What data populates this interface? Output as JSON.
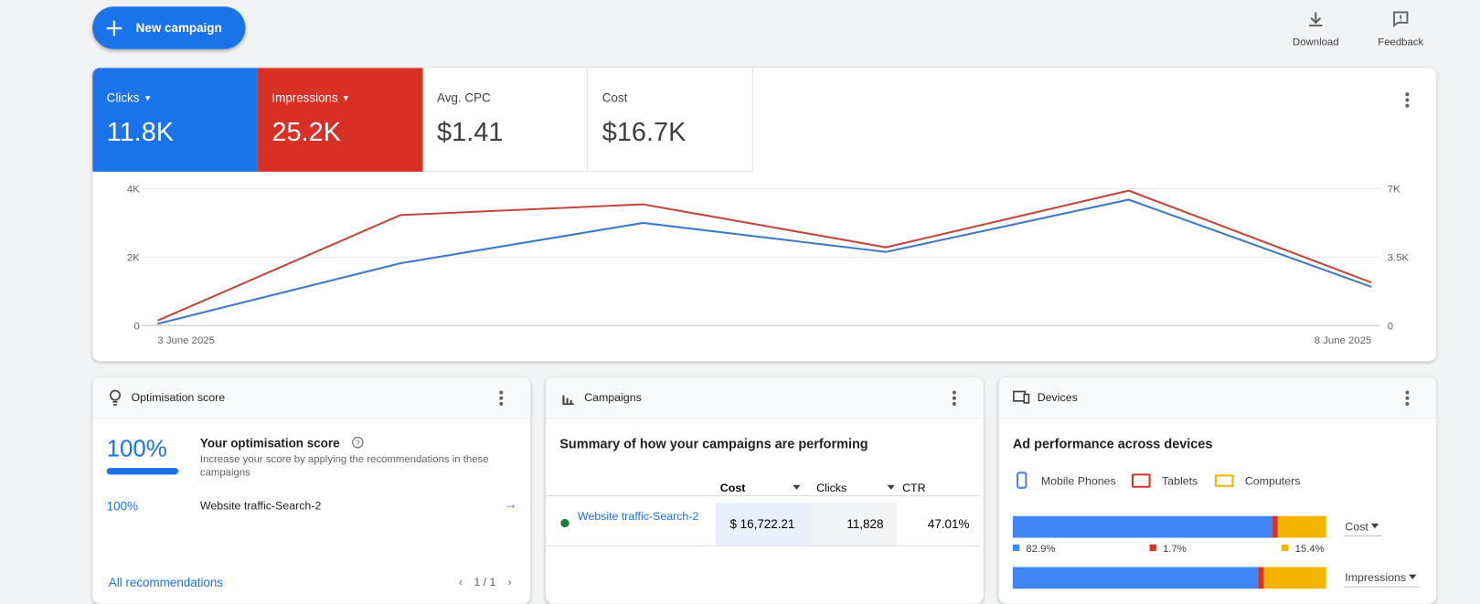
{
  "header": {
    "new_campaign": "New campaign",
    "download": "Download",
    "feedback": "Feedback"
  },
  "metrics": [
    {
      "label": "Clicks",
      "value": "11.8K"
    },
    {
      "label": "Impressions",
      "value": "25.2K"
    },
    {
      "label": "Avg. CPC",
      "value": "$1.41"
    },
    {
      "label": "Cost",
      "value": "$16.7K"
    }
  ],
  "chart_data": {
    "type": "line",
    "categories": [
      "3 June 2025",
      null,
      null,
      null,
      null,
      "8 June 2025"
    ],
    "series": [
      {
        "color": "#3d78c9",
        "values": [
          50,
          1820,
          3000,
          2150,
          3680,
          1130
        ]
      },
      {
        "color": "#c4473b",
        "axis": "y2",
        "values": [
          250,
          5650,
          6200,
          4000,
          6900,
          2200
        ]
      }
    ],
    "ylim": [
      0,
      4000
    ],
    "yticks": [
      0,
      {
        "value": 2000,
        "label": "2K"
      },
      {
        "value": 4000,
        "label": "4K"
      }
    ],
    "y2lim": [
      0,
      7000
    ],
    "y2ticks": [
      0,
      {
        "value": 3500,
        "label": "3.5K"
      },
      {
        "value": 7000,
        "label": "7K"
      }
    ],
    "grid": true
  },
  "optimisation": {
    "title": "Optimisation score",
    "score": "100%",
    "heading": "Your optimisation score",
    "description": "Increase your score by applying the recommendations in these campaigns",
    "row": {
      "score": "100%",
      "campaign": "Website traffic-Search-2"
    },
    "link": "All recommendations",
    "pager": "1 / 1"
  },
  "campaigns": {
    "title": "Campaigns",
    "subtitle": "Summary of how your campaigns are performing",
    "headers": [
      "Cost",
      "Clicks",
      "CTR"
    ],
    "rows": [
      [
        "Website traffic-Search-2",
        "$ 16,722.21",
        "11,828",
        "47.01%"
      ]
    ]
  },
  "devices": {
    "title": "Devices",
    "subtitle": "Ad performance across devices",
    "legend": [
      "Mobile Phones",
      "Tablets",
      "Computers"
    ],
    "colors": [
      "#4285f4",
      "#d93025",
      "#f4b400"
    ],
    "bars": [
      {
        "metric": "Cost",
        "values": [
          82.9,
          1.7,
          15.4
        ],
        "value_labels": [
          "82.9%",
          "1.7%",
          "15.4%"
        ]
      },
      {
        "metric": "Impressions",
        "values": [
          78.3,
          1.8,
          19.9
        ]
      }
    ]
  }
}
